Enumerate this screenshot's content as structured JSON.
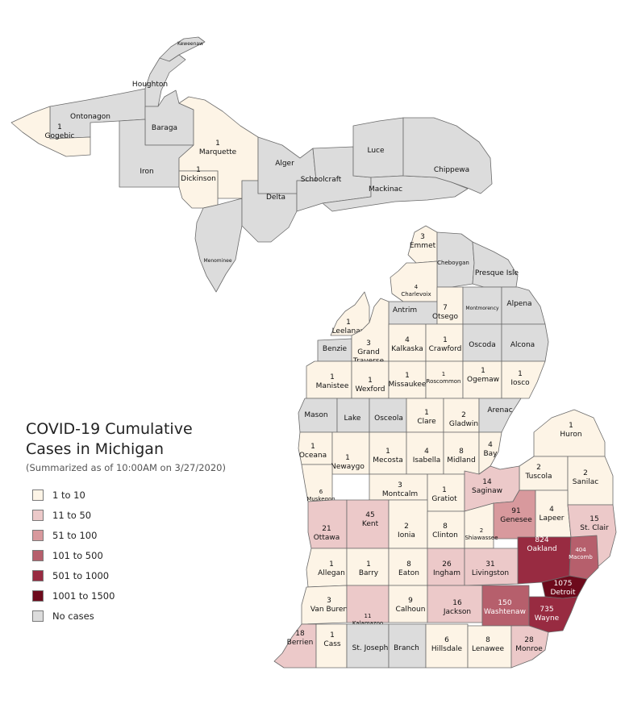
{
  "legend": {
    "title": "COVID-19 Cumulative\nCases in Michigan",
    "subtitle": "(Summarized as of 10:00AM on 3/27/2020)",
    "bins": [
      {
        "label": "1 to 10",
        "color": "#fdf4e6"
      },
      {
        "label": "11 to 50",
        "color": "#ecc9c9"
      },
      {
        "label": "51 to 100",
        "color": "#d8999d"
      },
      {
        "label": "101 to 500",
        "color": "#b65f6c"
      },
      {
        "label": "501 to 1000",
        "color": "#982b41"
      },
      {
        "label": "1001 to 1500",
        "color": "#6d0a1c"
      },
      {
        "label": "No cases",
        "color": "#dcdcdc"
      }
    ]
  },
  "regions": [
    {
      "id": "keweenaw",
      "name": "Keweenaw",
      "cases": null,
      "bin": 6
    },
    {
      "id": "houghton",
      "name": "Houghton",
      "cases": null,
      "bin": 6
    },
    {
      "id": "ontonagon",
      "name": "Ontonagon",
      "cases": null,
      "bin": 6
    },
    {
      "id": "gogebic",
      "name": "Gogebic",
      "cases": "1",
      "bin": 0
    },
    {
      "id": "baraga",
      "name": "Baraga",
      "cases": null,
      "bin": 6
    },
    {
      "id": "iron",
      "name": "Iron",
      "cases": null,
      "bin": 6
    },
    {
      "id": "marquette",
      "name": "Marquette",
      "cases": "1",
      "bin": 0
    },
    {
      "id": "dickinson",
      "name": "Dickinson",
      "cases": "1",
      "bin": 0
    },
    {
      "id": "menominee",
      "name": "Menominee",
      "cases": null,
      "bin": 6
    },
    {
      "id": "delta",
      "name": "Delta",
      "cases": null,
      "bin": 6
    },
    {
      "id": "alger",
      "name": "Alger",
      "cases": null,
      "bin": 6
    },
    {
      "id": "schoolcraft",
      "name": "Schoolcraft",
      "cases": null,
      "bin": 6
    },
    {
      "id": "luce",
      "name": "Luce",
      "cases": null,
      "bin": 6
    },
    {
      "id": "mackinac",
      "name": "Mackinac",
      "cases": null,
      "bin": 6
    },
    {
      "id": "chippewa",
      "name": "Chippewa",
      "cases": null,
      "bin": 6
    },
    {
      "id": "emmet",
      "name": "Emmet",
      "cases": "3",
      "bin": 0
    },
    {
      "id": "cheboygan",
      "name": "Cheboygan",
      "cases": null,
      "bin": 6
    },
    {
      "id": "presque-isle",
      "name": "Presque Isle",
      "cases": null,
      "bin": 6
    },
    {
      "id": "charlevoix",
      "name": "Charlevoix",
      "cases": "4",
      "bin": 0
    },
    {
      "id": "antrim",
      "name": "Antrim",
      "cases": null,
      "bin": 6
    },
    {
      "id": "otsego",
      "name": "Otsego",
      "cases": "7",
      "bin": 0
    },
    {
      "id": "montmorency",
      "name": "Montmorency",
      "cases": null,
      "bin": 6
    },
    {
      "id": "alpena",
      "name": "Alpena",
      "cases": null,
      "bin": 6
    },
    {
      "id": "leelanau",
      "name": "Leelanau",
      "cases": "1",
      "bin": 0
    },
    {
      "id": "benzie",
      "name": "Benzie",
      "cases": null,
      "bin": 6
    },
    {
      "id": "grand-traverse",
      "name": "Grand Traverse",
      "cases": "3",
      "bin": 0
    },
    {
      "id": "kalkaska",
      "name": "Kalkaska",
      "cases": "4",
      "bin": 0
    },
    {
      "id": "crawford",
      "name": "Crawford",
      "cases": "1",
      "bin": 0
    },
    {
      "id": "oscoda",
      "name": "Oscoda",
      "cases": null,
      "bin": 6
    },
    {
      "id": "alcona",
      "name": "Alcona",
      "cases": null,
      "bin": 6
    },
    {
      "id": "manistee",
      "name": "Manistee",
      "cases": "1",
      "bin": 0
    },
    {
      "id": "wexford",
      "name": "Wexford",
      "cases": "1",
      "bin": 0
    },
    {
      "id": "missaukee",
      "name": "Missaukee",
      "cases": "1",
      "bin": 0
    },
    {
      "id": "roscommon",
      "name": "Roscommon",
      "cases": "1",
      "bin": 0
    },
    {
      "id": "ogemaw",
      "name": "Ogemaw",
      "cases": "1",
      "bin": 0
    },
    {
      "id": "iosco",
      "name": "Iosco",
      "cases": "1",
      "bin": 0
    },
    {
      "id": "mason",
      "name": "Mason",
      "cases": null,
      "bin": 6
    },
    {
      "id": "lake",
      "name": "Lake",
      "cases": null,
      "bin": 6
    },
    {
      "id": "osceola",
      "name": "Osceola",
      "cases": null,
      "bin": 6
    },
    {
      "id": "clare",
      "name": "Clare",
      "cases": "1",
      "bin": 0
    },
    {
      "id": "gladwin",
      "name": "Gladwin",
      "cases": "2",
      "bin": 0
    },
    {
      "id": "arenac",
      "name": "Arenac",
      "cases": null,
      "bin": 6
    },
    {
      "id": "huron",
      "name": "Huron",
      "cases": "1",
      "bin": 0
    },
    {
      "id": "oceana",
      "name": "Oceana",
      "cases": "1",
      "bin": 0
    },
    {
      "id": "newaygo",
      "name": "Newaygo",
      "cases": "1",
      "bin": 0
    },
    {
      "id": "mecosta",
      "name": "Mecosta",
      "cases": "1",
      "bin": 0
    },
    {
      "id": "isabella",
      "name": "Isabella",
      "cases": "4",
      "bin": 0
    },
    {
      "id": "midland",
      "name": "Midland",
      "cases": "8",
      "bin": 0
    },
    {
      "id": "bay",
      "name": "Bay",
      "cases": "4",
      "bin": 0
    },
    {
      "id": "tuscola",
      "name": "Tuscola",
      "cases": "2",
      "bin": 0
    },
    {
      "id": "sanilac",
      "name": "Sanilac",
      "cases": "2",
      "bin": 0
    },
    {
      "id": "muskegon",
      "name": "Muskegon",
      "cases": "6",
      "bin": 0
    },
    {
      "id": "montcalm",
      "name": "Montcalm",
      "cases": "3",
      "bin": 0
    },
    {
      "id": "gratiot",
      "name": "Gratiot",
      "cases": "1",
      "bin": 0
    },
    {
      "id": "saginaw",
      "name": "Saginaw",
      "cases": "14",
      "bin": 1
    },
    {
      "id": "genesee",
      "name": "Genesee",
      "cases": "91",
      "bin": 2
    },
    {
      "id": "lapeer",
      "name": "Lapeer",
      "cases": "4",
      "bin": 0
    },
    {
      "id": "st-clair",
      "name": "St. Clair",
      "cases": "15",
      "bin": 1
    },
    {
      "id": "ottawa",
      "name": "Ottawa",
      "cases": "21",
      "bin": 1
    },
    {
      "id": "kent",
      "name": "Kent",
      "cases": "45",
      "bin": 1
    },
    {
      "id": "ionia",
      "name": "Ionia",
      "cases": "2",
      "bin": 0
    },
    {
      "id": "clinton",
      "name": "Clinton",
      "cases": "8",
      "bin": 0
    },
    {
      "id": "shiawassee",
      "name": "Shiawassee",
      "cases": "2",
      "bin": 0
    },
    {
      "id": "oakland",
      "name": "Oakland",
      "cases": "824",
      "bin": 4
    },
    {
      "id": "macomb",
      "name": "Macomb",
      "cases": "404",
      "bin": 3
    },
    {
      "id": "allegan",
      "name": "Allegan",
      "cases": "1",
      "bin": 0
    },
    {
      "id": "barry",
      "name": "Barry",
      "cases": "1",
      "bin": 0
    },
    {
      "id": "eaton",
      "name": "Eaton",
      "cases": "8",
      "bin": 0
    },
    {
      "id": "ingham",
      "name": "Ingham",
      "cases": "26",
      "bin": 1
    },
    {
      "id": "livingston",
      "name": "Livingston",
      "cases": "31",
      "bin": 1
    },
    {
      "id": "detroit",
      "name": "Detroit",
      "cases": "1075",
      "bin": 5
    },
    {
      "id": "van-buren",
      "name": "Van Buren",
      "cases": "3",
      "bin": 0
    },
    {
      "id": "kalamazoo",
      "name": "Kalamazoo",
      "cases": "11",
      "bin": 1
    },
    {
      "id": "calhoun",
      "name": "Calhoun",
      "cases": "9",
      "bin": 0
    },
    {
      "id": "jackson",
      "name": "Jackson",
      "cases": "16",
      "bin": 1
    },
    {
      "id": "washtenaw",
      "name": "Washtenaw",
      "cases": "150",
      "bin": 3
    },
    {
      "id": "wayne",
      "name": "Wayne",
      "cases": "735",
      "bin": 4
    },
    {
      "id": "berrien",
      "name": "Berrien",
      "cases": "18",
      "bin": 1
    },
    {
      "id": "cass",
      "name": "Cass",
      "cases": "1",
      "bin": 0
    },
    {
      "id": "st-joseph",
      "name": "St. Joseph",
      "cases": null,
      "bin": 6
    },
    {
      "id": "branch",
      "name": "Branch",
      "cases": null,
      "bin": 6
    },
    {
      "id": "hillsdale",
      "name": "Hillsdale",
      "cases": "6",
      "bin": 0
    },
    {
      "id": "lenawee",
      "name": "Lenawee",
      "cases": "8",
      "bin": 0
    },
    {
      "id": "monroe",
      "name": "Monroe",
      "cases": "28",
      "bin": 1
    }
  ]
}
